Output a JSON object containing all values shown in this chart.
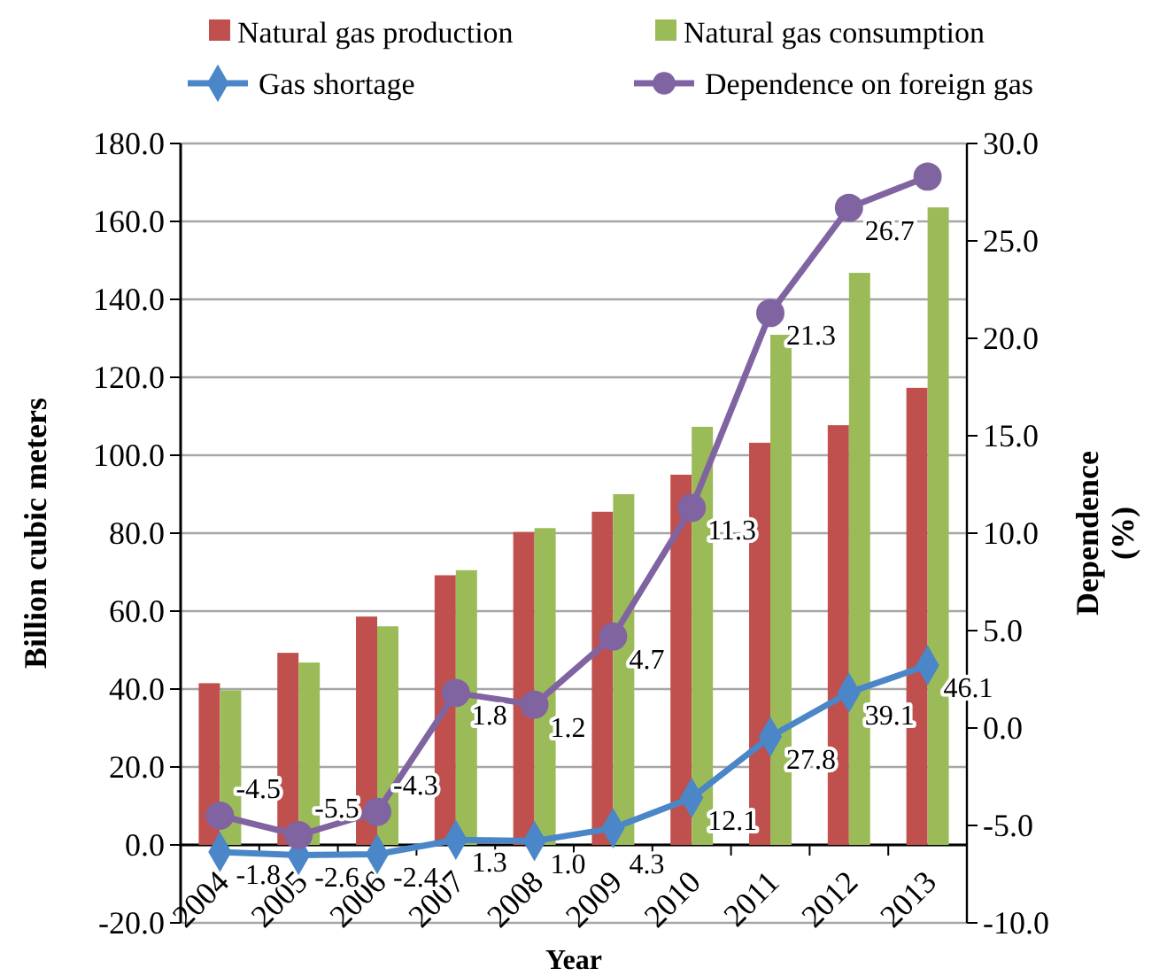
{
  "chart_data": {
    "type": "bar",
    "xlabel": "Year",
    "ylabel": "Billion cubic meters",
    "y2label": "Dependence (%)",
    "categories": [
      "2004",
      "2005",
      "2006",
      "2007",
      "2008",
      "2009",
      "2010",
      "2011",
      "2012",
      "2013"
    ],
    "series": [
      {
        "name": "Natural gas production",
        "color": "#c0504d",
        "values": [
          41.5,
          49.3,
          58.6,
          69.2,
          80.3,
          85.5,
          95.0,
          103.2,
          107.7,
          117.3
        ]
      },
      {
        "name": "Natural gas consumption",
        "color": "#9bbb59",
        "values": [
          39.7,
          46.8,
          56.1,
          70.5,
          81.3,
          90.0,
          107.3,
          130.9,
          146.8,
          163.6
        ]
      },
      {
        "name": "Gas shortage",
        "type": "line",
        "color": "#4a86c8",
        "marker": "diamond",
        "values": [
          -1.8,
          -2.6,
          -2.4,
          1.3,
          1.0,
          4.3,
          12.1,
          27.8,
          39.1,
          46.1
        ],
        "value_labels": [
          "-1.8",
          "-2.6",
          "-2.4",
          "1.3",
          "1.0",
          "4.3",
          "12.1",
          "27.8",
          "39.1",
          "46.1"
        ]
      },
      {
        "name": "Dependence on foreign gas",
        "type": "line",
        "axis": "y2",
        "color": "#8064a2",
        "marker": "circle",
        "values": [
          -4.5,
          -5.5,
          -4.3,
          1.8,
          1.2,
          4.7,
          11.3,
          21.3,
          26.7,
          28.3
        ],
        "value_labels": [
          "-4.5",
          "-5.5",
          "-4.3",
          "1.8",
          "1.2",
          "4.7",
          "11.3",
          "21.3",
          "26.7",
          null
        ]
      }
    ],
    "ylim": [
      -20,
      180
    ],
    "yticks": [
      {
        "value": -20,
        "label": "-20.0"
      },
      {
        "value": 0,
        "label": "0.0"
      },
      {
        "value": 20,
        "label": "20.0"
      },
      {
        "value": 40,
        "label": "40.0"
      },
      {
        "value": 60,
        "label": "60.0"
      },
      {
        "value": 80,
        "label": "80.0"
      },
      {
        "value": 100,
        "label": "100.0"
      },
      {
        "value": 120,
        "label": "120.0"
      },
      {
        "value": 140,
        "label": "140.0"
      },
      {
        "value": 160,
        "label": "160.0"
      },
      {
        "value": 180,
        "label": "180.0"
      }
    ],
    "y2lim": [
      -10,
      30
    ],
    "y2ticks": [
      {
        "value": -10,
        "label": "-10.0"
      },
      {
        "value": -5,
        "label": "-5.0"
      },
      {
        "value": 0,
        "label": "0.0"
      },
      {
        "value": 5,
        "label": "5.0"
      },
      {
        "value": 10,
        "label": "10.0"
      },
      {
        "value": 15,
        "label": "15.0"
      },
      {
        "value": 20,
        "label": "20.0"
      },
      {
        "value": 25,
        "label": "25.0"
      },
      {
        "value": 30,
        "label": "30.0"
      }
    ],
    "grid": "y",
    "legend": "top"
  }
}
